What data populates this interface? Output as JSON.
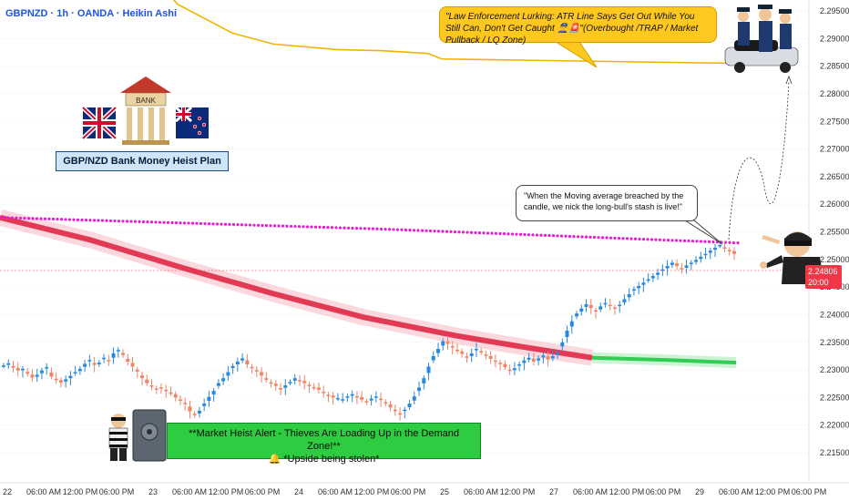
{
  "header": {
    "symbol": "GBPNZD · 1h · OANDA · Heikin Ashi"
  },
  "notes": {
    "top_bubble": "\"Law Enforcement Lurking: ATR Line Says Get Out While You Still Can, Don't Get Caught 👮‍♂️🚨\"(Overbought /TRAP / Market Pullback / LQ Zone)",
    "mid_bubble": "\"When the Moving average breached by the candle, we nick the long-bull's stash is live!\"",
    "title": "GBP/NZD Bank Money Heist Plan",
    "bank_label": "BANK",
    "alert_line1": "**Market Heist Alert - Thieves Are Loading Up in the Demand Zone!**",
    "alert_line2": "🔔 *Upside being stolen*"
  },
  "last_price": {
    "value": "2.24806",
    "countdown": "20:00"
  },
  "colors": {
    "up": "#2a89dc",
    "down": "#f08466",
    "red_band": "#e23a55",
    "green_band": "#33cc55",
    "dots": "#e81cd6",
    "atr": "#f0b400"
  },
  "chart_data": {
    "type": "candlestick",
    "title": "",
    "xlabel": "",
    "ylabel": "",
    "ylim": [
      2.2105,
      2.2985
    ],
    "y_ticks": [
      "2.29500",
      "2.29000",
      "2.28500",
      "2.28000",
      "2.27500",
      "2.27000",
      "2.26500",
      "2.26000",
      "2.25500",
      "2.25000",
      "2.24500",
      "2.24000",
      "2.23500",
      "2.23000",
      "2.22500",
      "2.22000",
      "2.21500"
    ],
    "x_ticks": [
      "22",
      "06:00 AM",
      "12:00 PM",
      "06:00 PM",
      "23",
      "06:00 AM",
      "12:00 PM",
      "06:00 PM",
      "24",
      "06:00 AM",
      "12:00 PM",
      "06:00 PM",
      "25",
      "06:00 AM",
      "12:00 PM",
      "27",
      "06:00 AM",
      "12:00 PM",
      "06:00 PM",
      "29",
      "06:00 AM",
      "12:00 PM",
      "06:00 PM"
    ],
    "candles_close": [
      2.2308,
      2.2312,
      2.2304,
      2.2299,
      2.2302,
      2.2293,
      2.2286,
      2.2291,
      2.2299,
      2.2305,
      2.2288,
      2.2282,
      2.2277,
      2.2283,
      2.2289,
      2.2296,
      2.2302,
      2.2311,
      2.2318,
      2.2309,
      2.2313,
      2.2322,
      2.2316,
      2.233,
      2.2336,
      2.2327,
      2.2315,
      2.2306,
      2.2297,
      2.2285,
      2.2276,
      2.227,
      2.2265,
      2.2268,
      2.2262,
      2.2258,
      2.225,
      2.2245,
      2.2238,
      2.2225,
      2.2218,
      2.2226,
      2.2239,
      2.2251,
      2.2262,
      2.2276,
      2.2285,
      2.2296,
      2.2307,
      2.2315,
      2.2321,
      2.231,
      2.2303,
      2.2298,
      2.229,
      2.2282,
      2.2275,
      2.2271,
      2.2265,
      2.2272,
      2.2278,
      2.2285,
      2.228,
      2.2276,
      2.2272,
      2.2268,
      2.2264,
      2.2259,
      2.2253,
      2.225,
      2.2249,
      2.2247,
      2.2252,
      2.2256,
      2.2251,
      2.2246,
      2.2243,
      2.2248,
      2.2252,
      2.2246,
      2.2239,
      2.2232,
      2.2226,
      2.2219,
      2.2228,
      2.2239,
      2.2252,
      2.2268,
      2.2285,
      2.2306,
      2.2325,
      2.2338,
      2.2352,
      2.2347,
      2.2341,
      2.2334,
      2.2329,
      2.2322,
      2.233,
      2.2338,
      2.2332,
      2.2326,
      2.232,
      2.2316,
      2.2312,
      2.2305,
      2.2298,
      2.2303,
      2.231,
      2.2317,
      2.2322,
      2.2315,
      2.2321,
      2.2326,
      2.2319,
      2.2325,
      2.2331,
      2.235,
      2.2371,
      2.2388,
      2.2402,
      2.2411,
      2.2419,
      2.2412,
      2.2406,
      2.2415,
      2.2421,
      2.2417,
      2.2411,
      2.2418,
      2.2428,
      2.2437,
      2.2446,
      2.2452,
      2.2458,
      2.2464,
      2.247,
      2.2476,
      2.2482,
      2.2488,
      2.2494,
      2.2488,
      2.2483,
      2.2489,
      2.2494,
      2.2499,
      2.2505,
      2.251,
      2.2516,
      2.2521,
      2.2526,
      2.252,
      2.2516,
      2.251
    ],
    "red_band": [
      2.2576,
      2.2535,
      2.2485,
      2.2438,
      2.2395,
      2.2362,
      2.234,
      2.2322
    ],
    "green_band": [
      2.2322,
      2.2318,
      2.2313
    ],
    "atr_line": [
      2.2991,
      2.2962,
      2.291,
      2.289,
      2.288,
      2.2878,
      2.2873,
      2.2863,
      2.2855
    ],
    "dots_line": [
      2.2576,
      2.2555,
      2.253
    ]
  }
}
